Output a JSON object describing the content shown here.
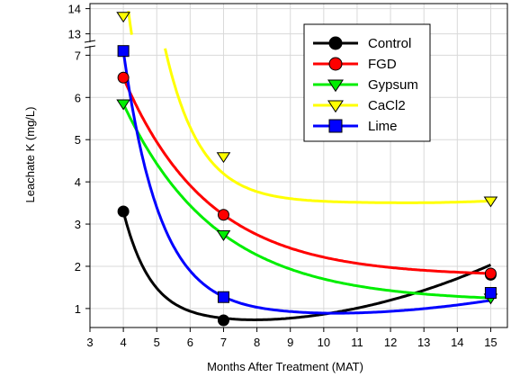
{
  "chart_data": {
    "type": "line",
    "title": "",
    "xlabel": "Months After Treatment (MAT)",
    "ylabel": "Leachate K (mg/L)",
    "x_ticks": [
      3,
      4,
      5,
      6,
      7,
      8,
      9,
      10,
      11,
      12,
      13,
      14,
      15
    ],
    "y_ticks_lower": [
      1,
      2,
      3,
      4,
      5,
      6,
      7
    ],
    "y_ticks_upper": [
      13,
      14
    ],
    "xlim": [
      3,
      15.5
    ],
    "ylim_lower": [
      0.55,
      7.2
    ],
    "ylim_upper": [
      12.7,
      14.2
    ],
    "legend_position": "top-right",
    "series": [
      {
        "name": "Control",
        "color": "#000000",
        "marker": "circle",
        "x": [
          4,
          7,
          15
        ],
        "y": [
          3.3,
          0.72,
          1.8
        ]
      },
      {
        "name": "FGD",
        "color": "#ff0000",
        "marker": "circle",
        "x": [
          4,
          7,
          15
        ],
        "y": [
          6.47,
          3.22,
          1.83
        ]
      },
      {
        "name": "Gypsum",
        "color": "#00ee00",
        "marker": "triangle-down",
        "x": [
          4,
          7,
          15
        ],
        "y": [
          5.85,
          2.75,
          1.25
        ]
      },
      {
        "name": "CaCl2",
        "color": "#ffff00",
        "marker": "triangle-down",
        "x": [
          4,
          7,
          15
        ],
        "y": [
          13.7,
          4.6,
          3.55
        ]
      },
      {
        "name": "Lime",
        "color": "#0000ff",
        "marker": "square",
        "x": [
          4,
          7,
          15
        ],
        "y": [
          7.1,
          1.27,
          1.37
        ]
      }
    ]
  }
}
